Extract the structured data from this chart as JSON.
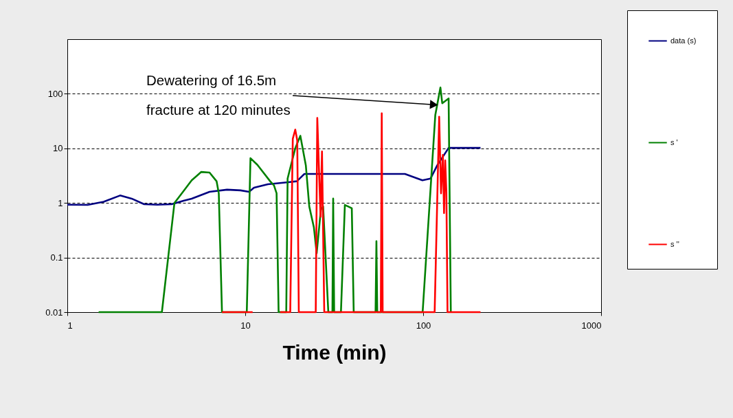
{
  "chart_data": {
    "type": "line",
    "xlabel": "Time (min)",
    "log": "xy",
    "xlim": [
      1,
      1000
    ],
    "xticks": [
      1,
      10,
      100,
      1000
    ],
    "ylim": [
      0.01,
      1000
    ],
    "yticks": [
      0.01,
      0.1,
      1,
      10,
      100
    ],
    "grid": "y",
    "legend": "right",
    "marker": "none",
    "line_style": "solid",
    "annotations": [
      {
        "text": "Dewatering of 16.5m\nfracture at 120 minutes",
        "x": 115,
        "y": 63
      }
    ],
    "series": [
      {
        "name": "data (s)",
        "color": "#000080",
        "x": [
          1,
          1.3,
          1.6,
          1.98,
          2.3,
          2.7,
          3.2,
          3.86,
          4.5,
          5.0,
          6.3,
          7.9,
          9.4,
          10.5,
          11.2,
          13.4,
          17.5,
          19.5,
          21.5,
          40,
          79,
          99,
          110,
          120,
          139,
          210
        ],
        "values": [
          0.93,
          0.92,
          1.05,
          1.37,
          1.2,
          0.95,
          0.93,
          0.95,
          1.1,
          1.2,
          1.6,
          1.75,
          1.7,
          1.6,
          1.9,
          2.2,
          2.4,
          2.5,
          3.4,
          3.4,
          3.4,
          2.6,
          2.8,
          4.9,
          10.2,
          10.2
        ]
      },
      {
        "name": "s '",
        "color": "#008000",
        "x": [
          1.5,
          3.0,
          3.4,
          4.0,
          4.4,
          5.0,
          5.66,
          6.3,
          6.9,
          7.1,
          7.4,
          10.2,
          10.7,
          11.7,
          13.8,
          14.5,
          15.0,
          15.4,
          17.0,
          17.3,
          19.1,
          20.4,
          21.9,
          22.9,
          24.3,
          25.2,
          26.6,
          27.4,
          29.3,
          30.9,
          31.2,
          31.6,
          34.5,
          36.3,
          39.7,
          40.7,
          54,
          54.6,
          55.2,
          99.3,
          117,
          125,
          128,
          139,
          143
        ],
        "values": [
          0.01,
          0.01,
          0.01,
          1,
          1.5,
          2.6,
          3.7,
          3.6,
          2.5,
          1.5,
          0.01,
          0.01,
          6.6,
          5,
          2.5,
          2.1,
          1.5,
          0.01,
          0.01,
          2.8,
          10,
          17,
          4.9,
          0.86,
          0.36,
          0.12,
          0.75,
          0.86,
          0.01,
          0.01,
          1.2,
          0.01,
          0.01,
          0.92,
          0.8,
          0.01,
          0.01,
          0.2,
          0.01,
          0.01,
          41,
          130,
          67,
          82,
          0.01
        ]
      },
      {
        "name": "s ''",
        "color": "#ff0000",
        "x": [
          7.4,
          11.0,
          13,
          15.7,
          17.9,
          18.5,
          19.1,
          19.6,
          20.0,
          24.9,
          25.4,
          26.5,
          27.0,
          27.8,
          57.8,
          58.5,
          59.2,
          116,
          123,
          126,
          129,
          131,
          133,
          135,
          137,
          210
        ],
        "values": [
          0.01,
          0.01,
          null,
          0.01,
          0.01,
          15,
          22,
          14,
          0.01,
          0.01,
          36,
          0.56,
          8.8,
          0.01,
          0.01,
          44,
          0.01,
          0.01,
          38,
          1.5,
          7.6,
          0.65,
          6,
          1.6,
          0.01,
          0.01
        ]
      }
    ]
  }
}
